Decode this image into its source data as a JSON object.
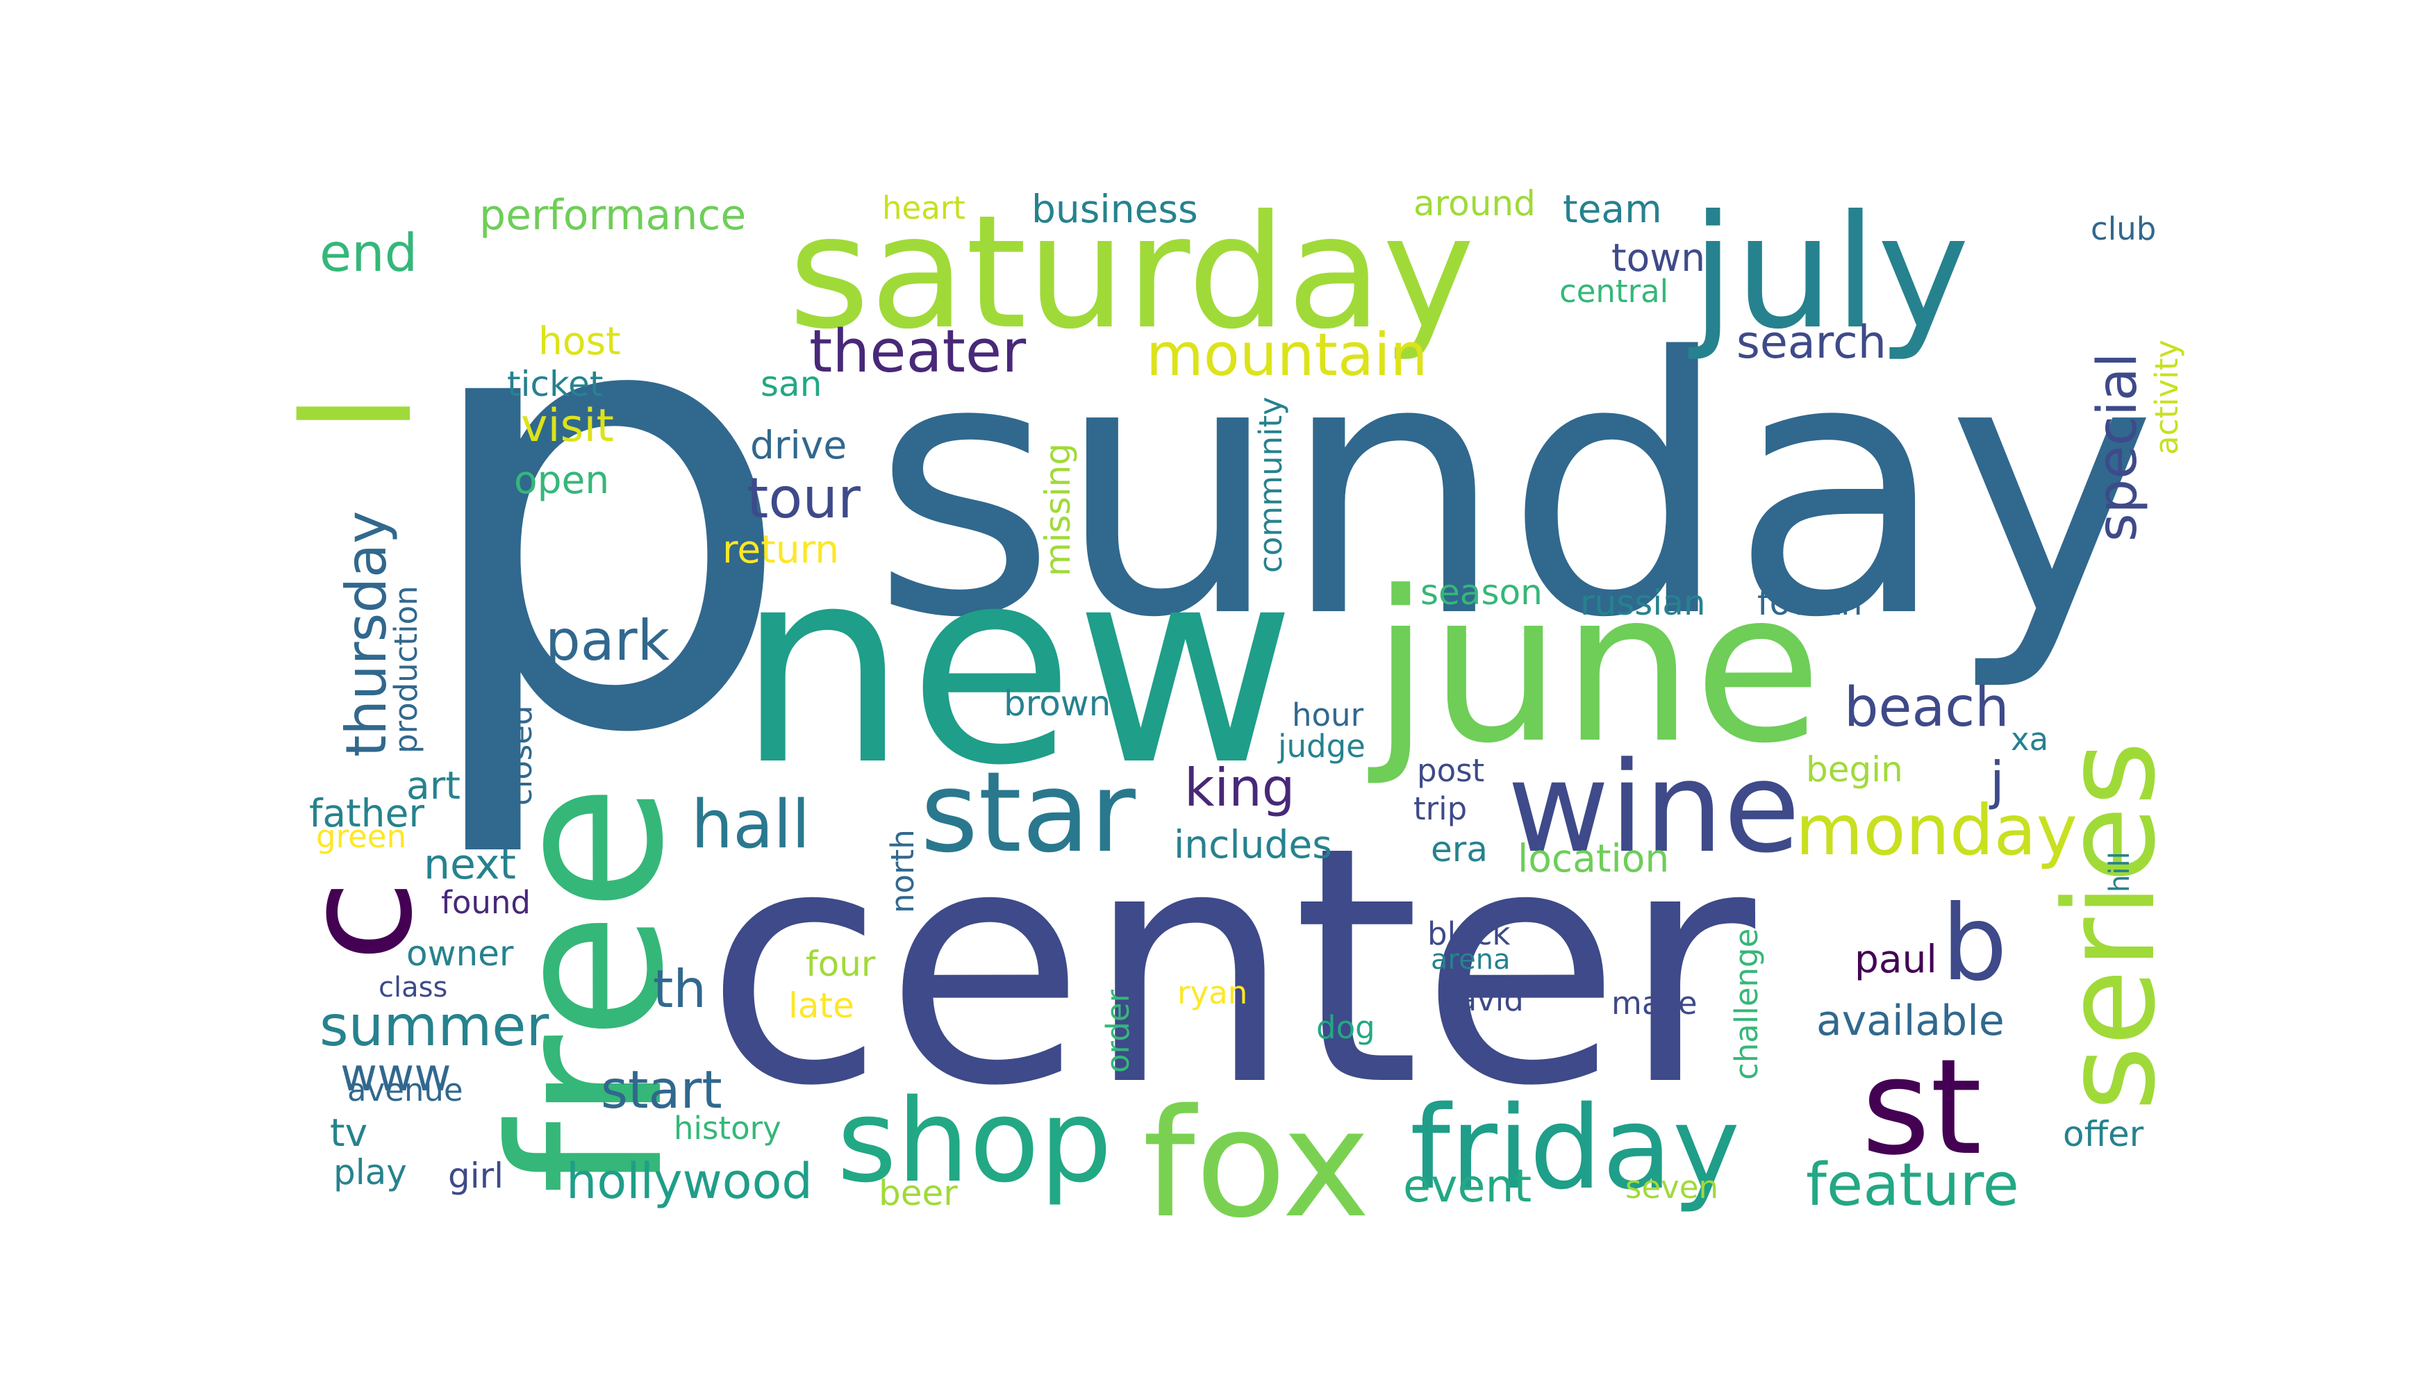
{
  "palette": {
    "background": "#ffffff",
    "dark_purple": "#440154",
    "indigo": "#3e4a89",
    "blue": "#31688e",
    "teal": "#26828e",
    "sea": "#1f9e89",
    "green": "#35b779",
    "lime": "#6ece58",
    "yellow_green": "#b5de2b",
    "yellow": "#dce319"
  },
  "words": [
    {
      "text": "p",
      "color": "#31688e"
    },
    {
      "text": "sunday",
      "color": "#31688e"
    },
    {
      "text": "center",
      "color": "#3e4a89"
    },
    {
      "text": "new",
      "color": "#1f9e89"
    },
    {
      "text": "june",
      "color": "#6ece58"
    },
    {
      "text": "free",
      "color": "#35b779"
    },
    {
      "text": "saturday",
      "color": "#a0da39"
    },
    {
      "text": "july",
      "color": "#26828e"
    },
    {
      "text": "series",
      "color": "#a0da39"
    },
    {
      "text": "fox",
      "color": "#7ad151"
    },
    {
      "text": "shop",
      "color": "#22a884"
    },
    {
      "text": "friday",
      "color": "#1f9e89"
    },
    {
      "text": "st",
      "color": "#440154"
    },
    {
      "text": "wine",
      "color": "#3e4a89"
    },
    {
      "text": "star",
      "color": "#2a788e"
    },
    {
      "text": "l",
      "color": "#a0da39"
    },
    {
      "text": "c",
      "color": "#440154"
    },
    {
      "text": "b",
      "color": "#3e4a89"
    },
    {
      "text": "monday",
      "color": "#c8e020"
    },
    {
      "text": "hall",
      "color": "#2a788e"
    },
    {
      "text": "theater",
      "color": "#482878"
    },
    {
      "text": "mountain",
      "color": "#dce319"
    },
    {
      "text": "special",
      "color": "#3e4a89"
    },
    {
      "text": "beach",
      "color": "#3e4a89"
    },
    {
      "text": "feature",
      "color": "#22a884"
    },
    {
      "text": "tour",
      "color": "#3e4a89"
    },
    {
      "text": "park",
      "color": "#31688e"
    },
    {
      "text": "king",
      "color": "#482878"
    },
    {
      "text": "thursday",
      "color": "#31688e"
    },
    {
      "text": "end",
      "color": "#35b779"
    },
    {
      "text": "performance",
      "color": "#6ece58"
    },
    {
      "text": "summer",
      "color": "#26828e"
    },
    {
      "text": "hollywood",
      "color": "#1f9e89"
    },
    {
      "text": "start",
      "color": "#31688e"
    },
    {
      "text": "event",
      "color": "#22a884"
    },
    {
      "text": "available",
      "color": "#31688e"
    },
    {
      "text": "th",
      "color": "#31688e"
    },
    {
      "text": "j",
      "color": "#3e4a89"
    },
    {
      "text": "visit",
      "color": "#dce319"
    },
    {
      "text": "search",
      "color": "#3e4a89"
    },
    {
      "text": "business",
      "color": "#26828e"
    },
    {
      "text": "team",
      "color": "#26828e"
    },
    {
      "text": "town",
      "color": "#3e4a89"
    },
    {
      "text": "next",
      "color": "#26828e"
    },
    {
      "text": "www",
      "color": "#31688e"
    },
    {
      "text": "art",
      "color": "#26828e"
    },
    {
      "text": "father",
      "color": "#26828e"
    },
    {
      "text": "host",
      "color": "#dce319"
    },
    {
      "text": "ticket",
      "color": "#26828e"
    },
    {
      "text": "san",
      "color": "#22a884"
    },
    {
      "text": "drive",
      "color": "#31688e"
    },
    {
      "text": "open",
      "color": "#35b779"
    },
    {
      "text": "return",
      "color": "#fde725"
    },
    {
      "text": "season",
      "color": "#35b779"
    },
    {
      "text": "russian",
      "color": "#26828e"
    },
    {
      "text": "fourth",
      "color": "#31688e"
    },
    {
      "text": "brown",
      "color": "#26828e"
    },
    {
      "text": "hour",
      "color": "#31688e"
    },
    {
      "text": "judge",
      "color": "#26828e"
    },
    {
      "text": "includes",
      "color": "#26828e"
    },
    {
      "text": "location",
      "color": "#6ece58"
    },
    {
      "text": "begin",
      "color": "#a0da39"
    },
    {
      "text": "post",
      "color": "#3e4a89"
    },
    {
      "text": "trip",
      "color": "#3e4a89"
    },
    {
      "text": "era",
      "color": "#26828e"
    },
    {
      "text": "xa",
      "color": "#26828e"
    },
    {
      "text": "heart",
      "color": "#c8e020"
    },
    {
      "text": "around",
      "color": "#a0da39"
    },
    {
      "text": "central",
      "color": "#35b779"
    },
    {
      "text": "club",
      "color": "#31688e"
    },
    {
      "text": "activity",
      "color": "#c8e020"
    },
    {
      "text": "community",
      "color": "#26828e"
    },
    {
      "text": "missing",
      "color": "#a0da39"
    },
    {
      "text": "production",
      "color": "#31688e"
    },
    {
      "text": "closed",
      "color": "#31688e"
    },
    {
      "text": "green",
      "color": "#fde725"
    },
    {
      "text": "found",
      "color": "#482878"
    },
    {
      "text": "owner",
      "color": "#26828e"
    },
    {
      "text": "class",
      "color": "#3e4a89"
    },
    {
      "text": "avenue",
      "color": "#31688e"
    },
    {
      "text": "tv",
      "color": "#26828e"
    },
    {
      "text": "play",
      "color": "#26828e"
    },
    {
      "text": "girl",
      "color": "#3e4a89"
    },
    {
      "text": "history",
      "color": "#35b779"
    },
    {
      "text": "beer",
      "color": "#a0da39"
    },
    {
      "text": "four",
      "color": "#a0da39"
    },
    {
      "text": "late",
      "color": "#fde725"
    },
    {
      "text": "north",
      "color": "#31688e"
    },
    {
      "text": "order",
      "color": "#35b779"
    },
    {
      "text": "ryan",
      "color": "#fde725"
    },
    {
      "text": "dog",
      "color": "#22a884"
    },
    {
      "text": "black",
      "color": "#3e4a89"
    },
    {
      "text": "arena",
      "color": "#26828e"
    },
    {
      "text": "david",
      "color": "#3e4a89"
    },
    {
      "text": "make",
      "color": "#3e4a89"
    },
    {
      "text": "challenge",
      "color": "#35b779"
    },
    {
      "text": "paul",
      "color": "#440154"
    },
    {
      "text": "hill",
      "color": "#26828e"
    },
    {
      "text": "offer",
      "color": "#26828e"
    },
    {
      "text": "seven",
      "color": "#a0da39"
    }
  ]
}
